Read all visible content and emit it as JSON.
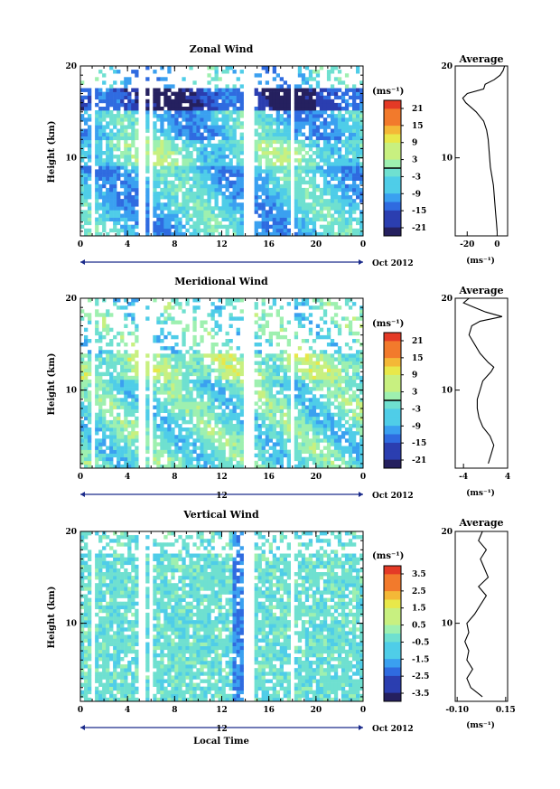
{
  "figure": {
    "x_axis_label": "Local Time",
    "date_label": "Oct 2012",
    "day_label": "12",
    "y_axis_label": "Height (km)",
    "unit_label": "(ms⁻¹)",
    "average_title": "Average"
  },
  "chart_data": [
    {
      "type": "heatmap",
      "title": "Zonal Wind",
      "xlabel": "",
      "ylabel": "Height (km)",
      "x_ticks": [
        "0",
        "4",
        "8",
        "12",
        "16",
        "20",
        "0"
      ],
      "y_ticks": [
        "20",
        "10"
      ],
      "xlim": [
        0,
        24
      ],
      "ylim": [
        1.5,
        20
      ],
      "colorbar": {
        "label": "(ms⁻¹)",
        "range": [
          -24,
          24
        ],
        "ticks": [
          "21",
          "15",
          "9",
          "3",
          "-3",
          "-9",
          "-15",
          "-21"
        ]
      },
      "average": {
        "title": "Average",
        "xlabel": "(ms⁻¹)",
        "x_ticks": [
          "-20",
          "0"
        ],
        "xlim": [
          -28,
          7
        ],
        "profile": [
          [
            2,
            0
          ],
          [
            3,
            -0.5
          ],
          [
            4,
            -1
          ],
          [
            5,
            -1.5
          ],
          [
            6,
            -2
          ],
          [
            7,
            -2.5
          ],
          [
            8,
            -3.5
          ],
          [
            9,
            -4.5
          ],
          [
            10,
            -5
          ],
          [
            11,
            -5.5
          ],
          [
            12,
            -6
          ],
          [
            13,
            -7
          ],
          [
            14,
            -9
          ],
          [
            15,
            -14
          ],
          [
            16,
            -21
          ],
          [
            16.5,
            -23
          ],
          [
            17,
            -20
          ],
          [
            17.5,
            -9
          ],
          [
            18,
            -8
          ],
          [
            18.5,
            -2
          ],
          [
            19,
            2
          ],
          [
            19.5,
            4
          ],
          [
            20,
            5
          ]
        ]
      }
    },
    {
      "type": "heatmap",
      "title": "Meridional Wind",
      "xlabel": "",
      "ylabel": "Height (km)",
      "x_ticks": [
        "0",
        "4",
        "8",
        "12",
        "16",
        "20",
        "0"
      ],
      "y_ticks": [
        "20",
        "10"
      ],
      "xlim": [
        0,
        24
      ],
      "ylim": [
        1.5,
        20
      ],
      "colorbar": {
        "label": "(ms⁻¹)",
        "range": [
          -24,
          24
        ],
        "ticks": [
          "21",
          "15",
          "9",
          "3",
          "-3",
          "-9",
          "-15",
          "-21"
        ]
      },
      "average": {
        "title": "Average",
        "xlabel": "(ms⁻¹)",
        "x_ticks": [
          "-4",
          "4"
        ],
        "xlim": [
          -5.5,
          4
        ],
        "profile": [
          [
            2,
            0.5
          ],
          [
            3,
            1
          ],
          [
            4,
            1.5
          ],
          [
            5,
            0.8
          ],
          [
            6,
            -0.5
          ],
          [
            7,
            -1.2
          ],
          [
            8,
            -1.5
          ],
          [
            9,
            -1.5
          ],
          [
            10,
            -1
          ],
          [
            11,
            -0.5
          ],
          [
            12,
            1
          ],
          [
            12.5,
            1.5
          ],
          [
            13,
            0.5
          ],
          [
            14,
            -1
          ],
          [
            15,
            -2
          ],
          [
            16,
            -3
          ],
          [
            17,
            -2.5
          ],
          [
            17.5,
            -1
          ],
          [
            18,
            3
          ],
          [
            18.5,
            0
          ],
          [
            19,
            -2
          ],
          [
            19.5,
            -4
          ],
          [
            20,
            -3
          ]
        ]
      }
    },
    {
      "type": "heatmap",
      "title": "Vertical Wind",
      "xlabel": "Local Time",
      "ylabel": "Height (km)",
      "x_ticks": [
        "0",
        "4",
        "8",
        "12",
        "16",
        "20",
        "0"
      ],
      "y_ticks": [
        "20",
        "10"
      ],
      "xlim": [
        0,
        24
      ],
      "ylim": [
        1.5,
        20
      ],
      "colorbar": {
        "label": "(ms⁻¹)",
        "range": [
          -4,
          4
        ],
        "ticks": [
          "3.5",
          "2.5",
          "1.5",
          "0.5",
          "-0.5",
          "-1.5",
          "-2.5",
          "-3.5"
        ]
      },
      "average": {
        "title": "Average",
        "xlabel": "(ms⁻¹)",
        "x_ticks": [
          "-0.10",
          "0.15"
        ],
        "xlim": [
          -0.11,
          0.16
        ],
        "profile": [
          [
            2,
            0.03
          ],
          [
            3,
            -0.03
          ],
          [
            4,
            -0.05
          ],
          [
            5,
            -0.02
          ],
          [
            6,
            -0.05
          ],
          [
            7,
            -0.04
          ],
          [
            8,
            -0.06
          ],
          [
            9,
            -0.04
          ],
          [
            10,
            -0.05
          ],
          [
            11,
            -0.01
          ],
          [
            12,
            0.02
          ],
          [
            13,
            0.05
          ],
          [
            14,
            0.01
          ],
          [
            15,
            0.06
          ],
          [
            16,
            0.04
          ],
          [
            17,
            0.02
          ],
          [
            18,
            0.05
          ],
          [
            19,
            0.01
          ],
          [
            20,
            0.03
          ]
        ]
      }
    }
  ]
}
